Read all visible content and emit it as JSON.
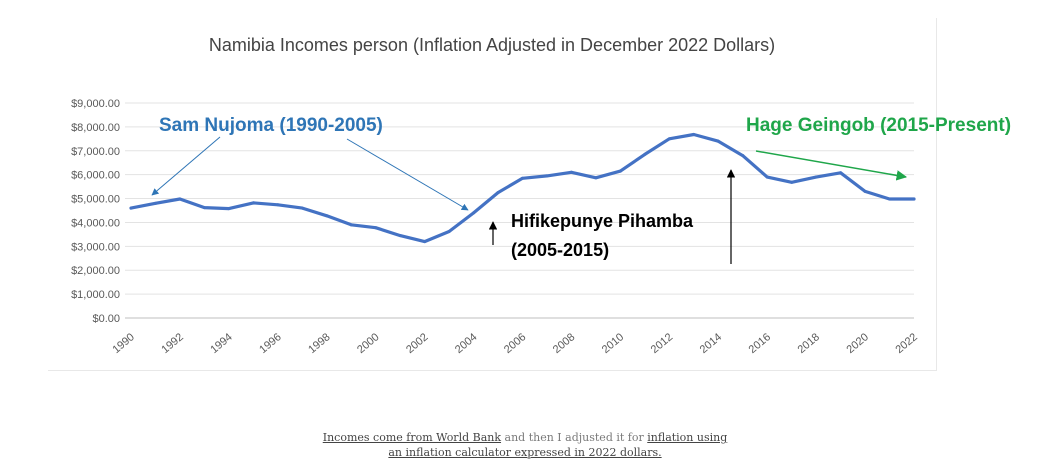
{
  "chart_data": {
    "type": "line",
    "title": "Namibia  Incomes person (Inflation Adjusted in December 2022 Dollars)",
    "xlabel": "",
    "ylabel": "",
    "ylim": [
      0,
      9000
    ],
    "y_ticks": [
      "$0.00",
      "$1,000.00",
      "$2,000.00",
      "$3,000.00",
      "$4,000.00",
      "$5,000.00",
      "$6,000.00",
      "$7,000.00",
      "$8,000.00",
      "$9,000.00"
    ],
    "x_ticks": [
      "1990",
      "1992",
      "1994",
      "1996",
      "1998",
      "2000",
      "2002",
      "2004",
      "2006",
      "2008",
      "2010",
      "2012",
      "2014",
      "2016",
      "2018",
      "2020",
      "2022"
    ],
    "grid": true,
    "line_color": "#4472C4",
    "series": [
      {
        "x": [
          1990,
          1991,
          1992,
          1993,
          1994,
          1995,
          1996,
          1997,
          1998,
          1999,
          2000,
          2001,
          2002,
          2003,
          2004,
          2005,
          2006,
          2007,
          2008,
          2009,
          2010,
          2011,
          2012,
          2013,
          2014,
          2015,
          2016,
          2017,
          2018,
          2019,
          2020,
          2021,
          2022
        ],
        "values": [
          4600,
          4800,
          4980,
          4620,
          4580,
          4820,
          4740,
          4600,
          4280,
          3900,
          3780,
          3450,
          3200,
          3620,
          4400,
          5250,
          5850,
          5950,
          6100,
          5870,
          6150,
          6850,
          7500,
          7680,
          7400,
          6800,
          5900,
          5680,
          5900,
          6080,
          5300,
          4980,
          4980
        ]
      }
    ],
    "annotations": [
      {
        "text": "Sam Nujoma (1990-2005)",
        "color": "#2E75B6"
      },
      {
        "text": "Hage Geingob (2015-Present)",
        "color": "#1FA64A"
      },
      {
        "text": "Hifikepunye Pihamba",
        "color": "#000000"
      },
      {
        "text": "(2005-2015)",
        "color": "#000000"
      }
    ]
  },
  "caption": {
    "link1": "Incomes come from World Bank",
    "text1": " and then I adjusted it for ",
    "link2": "inflation using",
    "link3": "an inflation calculator expressed in 2022 dollars."
  }
}
